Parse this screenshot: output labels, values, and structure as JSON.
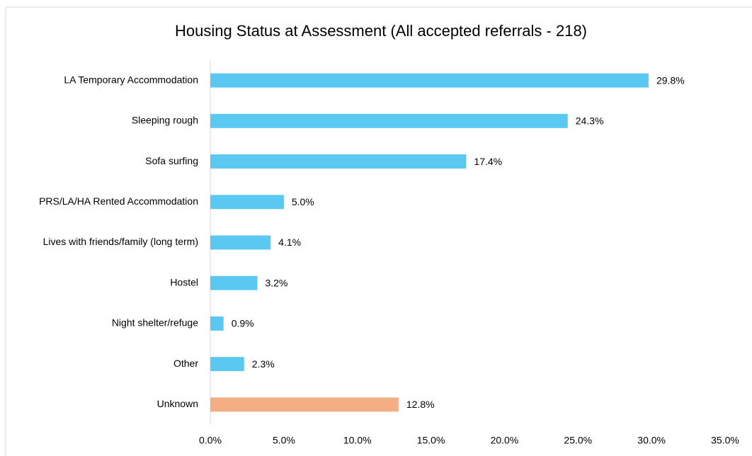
{
  "chart_data": {
    "type": "bar",
    "orientation": "horizontal",
    "title": "Housing Status at Assessment (All accepted referrals - 218)",
    "categories": [
      "LA Temporary Accommodation",
      "Sleeping rough",
      "Sofa surfing",
      "PRS/LA/HA Rented Accommodation",
      "Lives with friends/family (long term)",
      "Hostel",
      "Night shelter/refuge",
      "Other",
      "Unknown"
    ],
    "values": [
      29.8,
      24.3,
      17.4,
      5.0,
      4.1,
      3.2,
      0.9,
      2.3,
      12.8
    ],
    "value_labels": [
      "29.8%",
      "24.3%",
      "17.4%",
      "5.0%",
      "4.1%",
      "3.2%",
      "0.9%",
      "2.3%",
      "12.8%"
    ],
    "colors": [
      "#5bc8f2",
      "#5bc8f2",
      "#5bc8f2",
      "#5bc8f2",
      "#5bc8f2",
      "#5bc8f2",
      "#5bc8f2",
      "#5bc8f2",
      "#f4ae84"
    ],
    "xlim": [
      0,
      35
    ],
    "xticks": [
      {
        "value": 0,
        "label": "0.0%"
      },
      {
        "value": 5,
        "label": "5.0%"
      },
      {
        "value": 10,
        "label": "10.0%"
      },
      {
        "value": 15,
        "label": "15.0%"
      },
      {
        "value": 20,
        "label": "20.0%"
      },
      {
        "value": 25,
        "label": "25.0%"
      },
      {
        "value": 30,
        "label": "30.0%"
      },
      {
        "value": 35,
        "label": "35.0%"
      }
    ],
    "grid": false
  }
}
